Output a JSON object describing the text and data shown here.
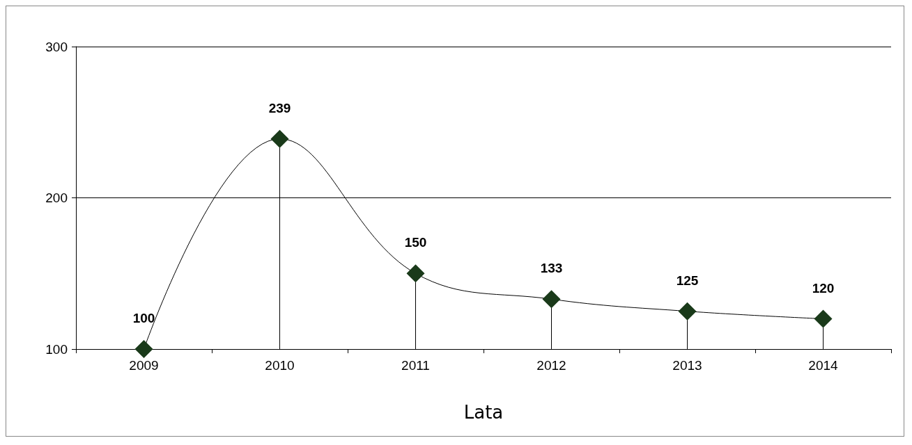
{
  "chart_data": {
    "type": "lollipop",
    "xlabel": "Lata",
    "categories": [
      "2009",
      "2010",
      "2011",
      "2012",
      "2013",
      "2014"
    ],
    "series": [
      {
        "type": "line",
        "color": "#000000",
        "values": [
          100,
          239,
          150,
          133,
          125,
          120
        ]
      },
      {
        "color": "#1a3a1a",
        "values": [
          100,
          239,
          150,
          133,
          125,
          120
        ],
        "value_labels": [
          "100",
          "239",
          "150",
          "133",
          "125",
          "120"
        ]
      }
    ],
    "ylim": [
      100,
      300
    ],
    "yticks": [
      100,
      200,
      300
    ],
    "grid": "y",
    "marker": "diamond",
    "line_style": "solid"
  }
}
